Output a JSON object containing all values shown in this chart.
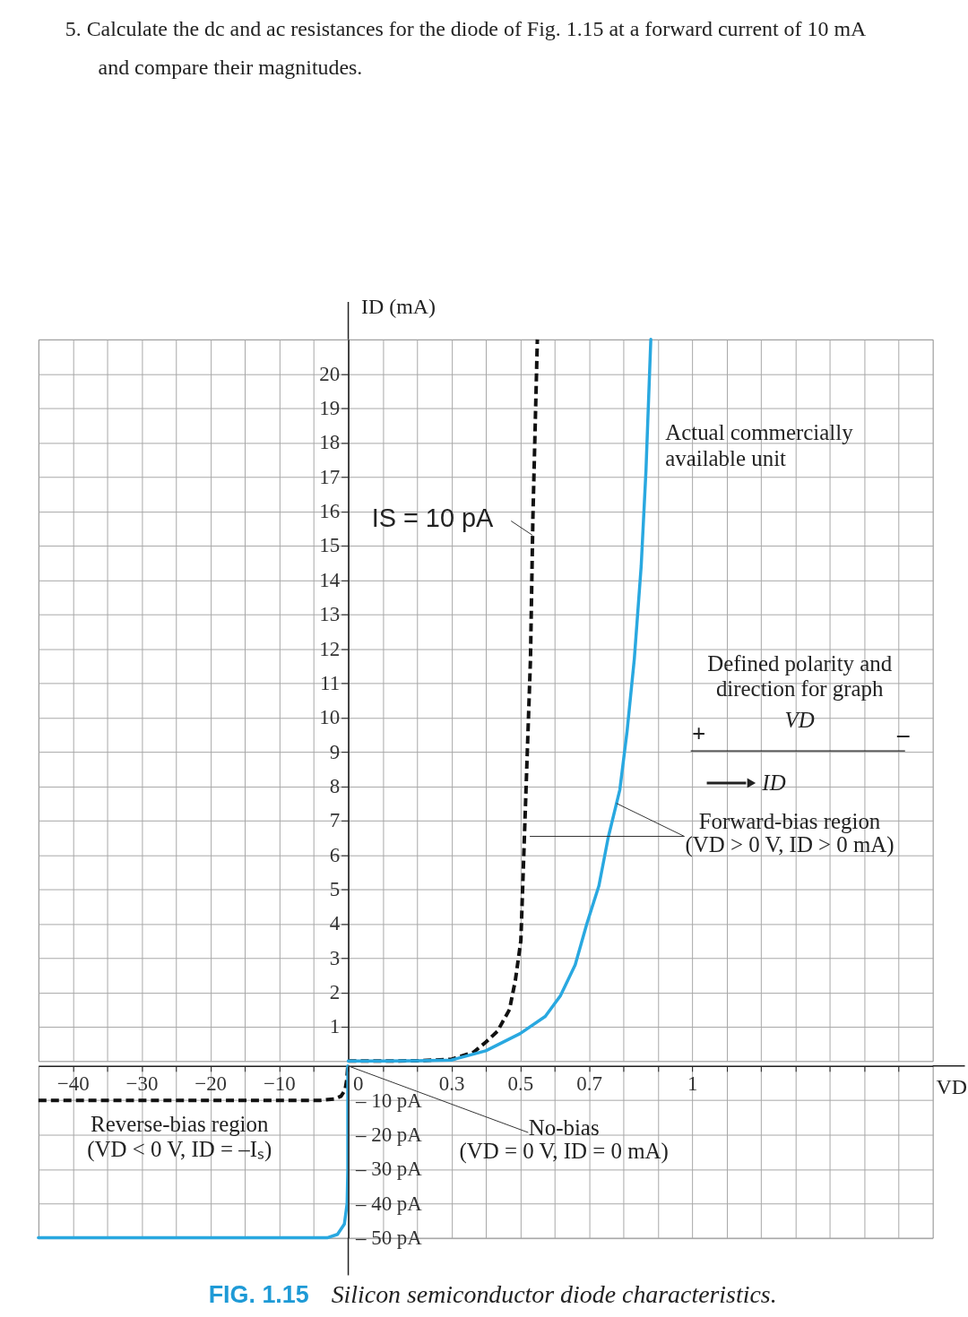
{
  "chart_data": [
    {
      "type": "line",
      "xlim": [
        -45,
        0
      ],
      "ylim": [
        0,
        21
      ],
      "xticks": [
        -40,
        -35,
        -30,
        -25,
        -20,
        -15,
        -10,
        -5
      ],
      "yticks": [
        1,
        2,
        3,
        4,
        5,
        6,
        7,
        8,
        9,
        10,
        11,
        12,
        13,
        14,
        15,
        16,
        17,
        18,
        19,
        20
      ],
      "tick_labels": false,
      "grid": true,
      "annotations": [
        "5. Calculate the dc and ac resistances for the diode of Fig. 1.15 at a forward current of 10 mA and compare their magnitudes."
      ]
    },
    {
      "type": "line",
      "ylabel": "ID (mA)",
      "xlim": [
        0,
        1.7
      ],
      "ylim": [
        0,
        21
      ],
      "xticks": [
        0,
        0.1,
        0.2,
        0.3,
        0.4,
        0.5,
        0.6,
        0.7,
        0.8,
        0.9,
        1,
        1.1,
        1.2,
        1.3,
        1.4,
        1.5,
        1.6
      ],
      "yticks": [
        1,
        2,
        3,
        4,
        5,
        6,
        7,
        8,
        9,
        10,
        11,
        12,
        13,
        14,
        15,
        16,
        17,
        18,
        19,
        20
      ],
      "tick_labels": "y",
      "grid": true,
      "series": [
        {
          "color": "#111111",
          "line_style": "dashed",
          "x": [
            0,
            0.1,
            0.2,
            0.3,
            0.365,
            0.4,
            0.434,
            0.469,
            0.486,
            0.502,
            0.516,
            0.53,
            0.537,
            0.55
          ],
          "values": [
            0,
            0,
            0.01,
            0.05,
            0.26,
            0.55,
            0.87,
            1.5,
            2.35,
            3.5,
            7.6,
            11.7,
            15.8,
            21
          ]
        },
        {
          "color": "#29a8e0",
          "line_style": "solid",
          "x": [
            0,
            0.1,
            0.2,
            0.3,
            0.4,
            0.5,
            0.573,
            0.617,
            0.66,
            0.694,
            0.729,
            0.756,
            0.79,
            0.811,
            0.832,
            0.852,
            0.866,
            0.88
          ],
          "values": [
            0,
            0,
            0.01,
            0.03,
            0.3,
            0.8,
            1.3,
            1.9,
            2.8,
            4,
            5.1,
            6.5,
            7.9,
            9.6,
            11.7,
            14.4,
            17.2,
            21
          ]
        }
      ],
      "annotations": [
        {
          "text": "IS = 10 pA",
          "x": 0.536,
          "y": 15.3
        },
        {
          "text": "Actual commercially available unit",
          "x": 0.87,
          "y": 18.3
        },
        "Defined polarity and direction for graph",
        "VD",
        "+",
        "–",
        "ID",
        {
          "text": "Forward-bias region (VD > 0 V, ID > 0 mA)",
          "x": 0.78,
          "y": 7.5
        }
      ]
    },
    {
      "type": "line",
      "xlim": [
        -45,
        0
      ],
      "ylim": [
        -50,
        0
      ],
      "xticks": [
        -40,
        {
          "value": -35,
          "label": null
        },
        -30,
        {
          "value": -25,
          "label": null
        },
        -20,
        {
          "value": -15,
          "label": null
        },
        -10,
        {
          "value": -5,
          "label": null
        }
      ],
      "yticks": [
        -50,
        -40,
        -30,
        -20,
        -10
      ],
      "tick_labels": "x",
      "grid": true,
      "series": [
        {
          "color": "#111111",
          "line_style": "dashed",
          "x": [
            -45,
            -4,
            -2,
            -1,
            -0.4,
            -0.15,
            0
          ],
          "values": [
            -10,
            -10,
            -9.6,
            -8.8,
            -7,
            -4,
            0
          ]
        },
        {
          "color": "#29a8e0",
          "line_style": "solid",
          "x": [
            -45,
            -3,
            -1.5,
            -0.5,
            -0.1,
            0,
            0
          ],
          "values": [
            -50,
            -50,
            -49,
            -46,
            -40,
            -30,
            0
          ]
        }
      ],
      "annotations": [
        "Reverse-bias region (VD < 0 V, ID = –Iₛ)",
        "FIG. 1.15 Silicon semiconductor diode characteristics."
      ]
    },
    {
      "type": "line",
      "xlabel": "VD",
      "xlim": [
        0,
        1.7
      ],
      "ylim": [
        -50,
        0
      ],
      "xticks": [
        0,
        {
          "value": 0.1,
          "label": null
        },
        {
          "value": 0.2,
          "label": null
        },
        0.3,
        {
          "value": 0.4,
          "label": null
        },
        0.5,
        {
          "value": 0.6,
          "label": null
        },
        0.7,
        {
          "value": 0.8,
          "label": null
        },
        {
          "value": 0.9,
          "label": null
        },
        1,
        {
          "value": 1.1,
          "label": null
        },
        {
          "value": 1.2,
          "label": null
        },
        {
          "value": 1.3,
          "label": null
        },
        {
          "value": 1.4,
          "label": null
        },
        {
          "value": 1.5,
          "label": null
        },
        {
          "value": 1.6,
          "label": null
        }
      ],
      "yticks": [
        {
          "value": -50,
          "label": "– 50 pA"
        },
        {
          "value": -40,
          "label": "– 40 pA"
        },
        {
          "value": -30,
          "label": "– 30 pA"
        },
        {
          "value": -20,
          "label": "– 20 pA"
        },
        {
          "value": -10,
          "label": "– 10 pA"
        }
      ],
      "grid": true,
      "annotations": [
        "No-bias (VD = 0 V, ID = 0 mA)"
      ]
    }
  ]
}
